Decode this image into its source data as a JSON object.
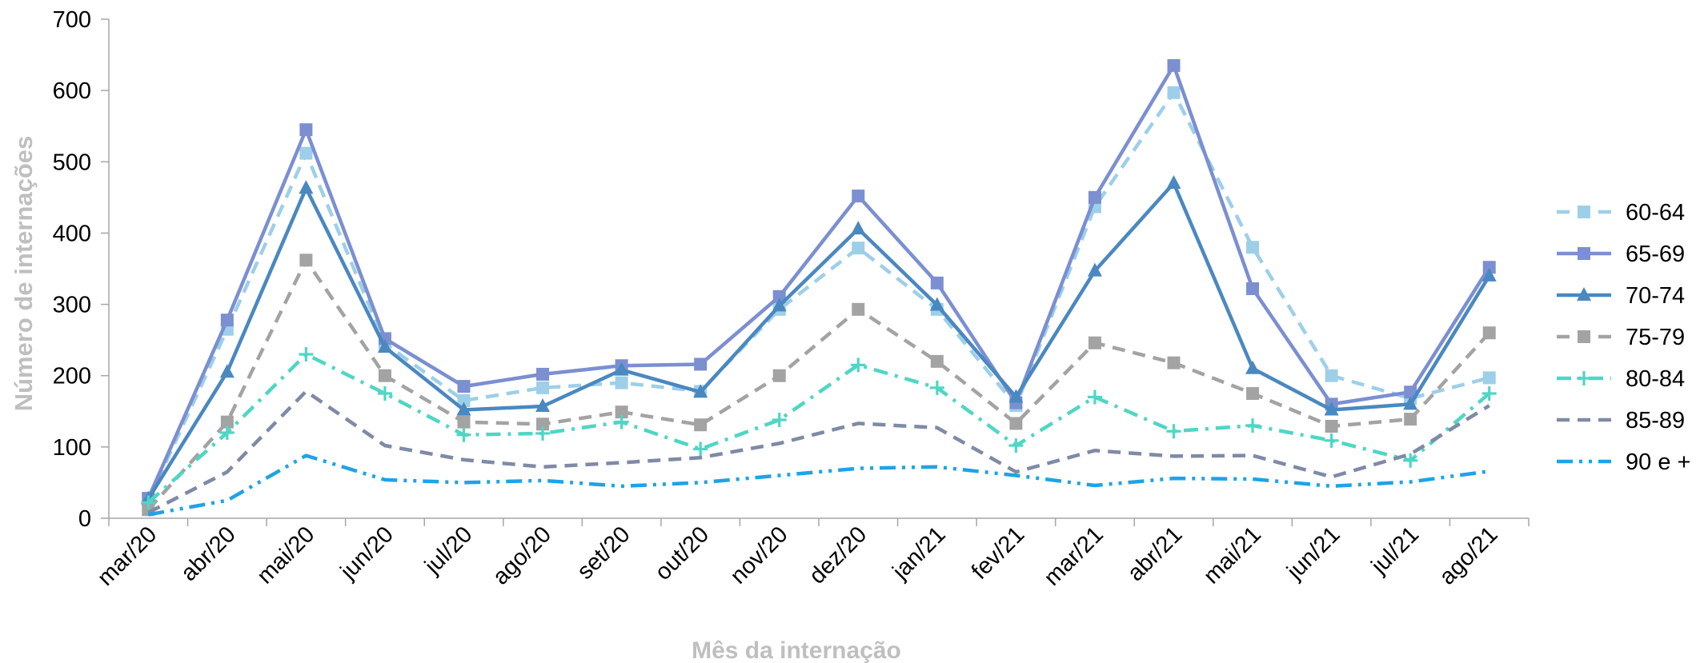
{
  "chart_data": {
    "type": "line",
    "title": "",
    "xlabel": "Mês da internação",
    "ylabel": "Número de internações",
    "ylim": [
      0,
      700
    ],
    "yticks": [
      0,
      100,
      200,
      300,
      400,
      500,
      600,
      700
    ],
    "grid": false,
    "legend_position": "right",
    "categories": [
      "mar/20",
      "abr/20",
      "mai/20",
      "jun/20",
      "jul/20",
      "ago/20",
      "set/20",
      "out/20",
      "nov/20",
      "dez/20",
      "jan/21",
      "fev/21",
      "mar/21",
      "abr/21",
      "mai/21",
      "jun/21",
      "jul/21",
      "ago/21"
    ],
    "series": [
      {
        "name": "60-64",
        "color": "#9dcfe9",
        "dash": "dash",
        "marker": "square",
        "values": [
          25,
          265,
          512,
          245,
          165,
          183,
          190,
          178,
          293,
          379,
          293,
          158,
          437,
          597,
          380,
          200,
          168,
          197
        ]
      },
      {
        "name": "65-69",
        "color": "#7b8fd1",
        "dash": "solid",
        "marker": "square",
        "values": [
          28,
          278,
          545,
          252,
          185,
          202,
          214,
          216,
          311,
          452,
          330,
          162,
          450,
          635,
          322,
          160,
          177,
          352
        ]
      },
      {
        "name": "70-74",
        "color": "#4a88c0",
        "dash": "solid",
        "marker": "triangle",
        "values": [
          27,
          205,
          463,
          240,
          152,
          157,
          208,
          177,
          298,
          406,
          299,
          170,
          347,
          470,
          210,
          152,
          160,
          340
        ]
      },
      {
        "name": "75-79",
        "color": "#a3a3a3",
        "dash": "dash",
        "marker": "square",
        "values": [
          12,
          135,
          362,
          200,
          135,
          132,
          149,
          131,
          200,
          293,
          220,
          133,
          246,
          218,
          175,
          129,
          139,
          260
        ]
      },
      {
        "name": "80-84",
        "color": "#4fd6c4",
        "dash": "dashdot",
        "marker": "plus",
        "values": [
          22,
          120,
          230,
          175,
          117,
          119,
          135,
          97,
          138,
          215,
          183,
          102,
          170,
          122,
          130,
          109,
          81,
          175
        ]
      },
      {
        "name": "85-89",
        "color": "#7f8aa6",
        "dash": "dash",
        "marker": "none",
        "values": [
          8,
          65,
          178,
          102,
          82,
          72,
          78,
          85,
          105,
          133,
          127,
          65,
          95,
          87,
          88,
          58,
          90,
          158
        ]
      },
      {
        "name": "90 e +",
        "color": "#1ea3e6",
        "dash": "dashdotdot",
        "marker": "none",
        "values": [
          5,
          25,
          88,
          54,
          50,
          53,
          45,
          50,
          60,
          70,
          72,
          60,
          46,
          56,
          55,
          45,
          51,
          66
        ]
      }
    ]
  }
}
